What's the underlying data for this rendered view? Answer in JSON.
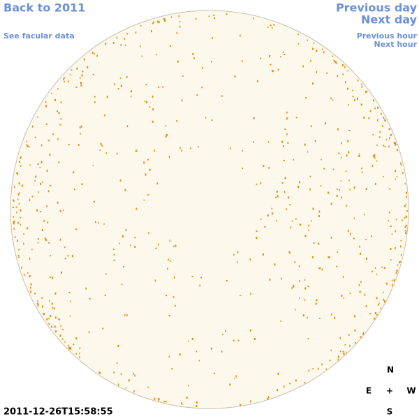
{
  "navigation": {
    "back_year": "Back to 2011",
    "facular_data": "See facular data",
    "previous_day": "Previous day",
    "next_day": "Next day",
    "previous_hour": "Previous hour",
    "next_hour": "Next hour"
  },
  "timestamp": "2011-12-26T15:58:55",
  "compass": {
    "north": "N",
    "east": "E",
    "center": "+",
    "west": "W",
    "south": "S"
  }
}
